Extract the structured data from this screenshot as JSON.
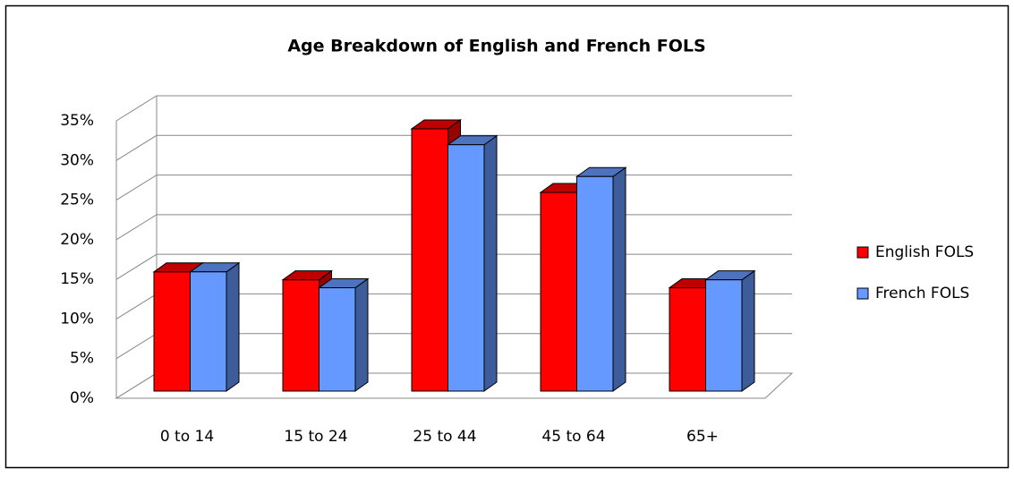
{
  "chart_data": {
    "type": "bar3d",
    "title": "Age Breakdown of English and French FOLS",
    "categories": [
      "0 to 14",
      "15 to 24",
      "25 to 44",
      "45 to 64",
      "65+"
    ],
    "series": [
      {
        "name": "English FOLS",
        "color": "#ff0000",
        "values": [
          15,
          14,
          33,
          25,
          13
        ]
      },
      {
        "name": "French FOLS",
        "color": "#6699ff",
        "values": [
          15,
          13,
          31,
          27,
          14
        ]
      }
    ],
    "ylim": [
      0,
      35
    ],
    "yticks": [
      {
        "value": 0,
        "label": "0%"
      },
      {
        "value": 5,
        "label": "5%"
      },
      {
        "value": 10,
        "label": "10%"
      },
      {
        "value": 15,
        "label": "15%"
      },
      {
        "value": 20,
        "label": "20%"
      },
      {
        "value": 25,
        "label": "25%"
      },
      {
        "value": 30,
        "label": "30%"
      },
      {
        "value": 35,
        "label": "35%"
      }
    ],
    "grid": true,
    "legend": "right"
  }
}
